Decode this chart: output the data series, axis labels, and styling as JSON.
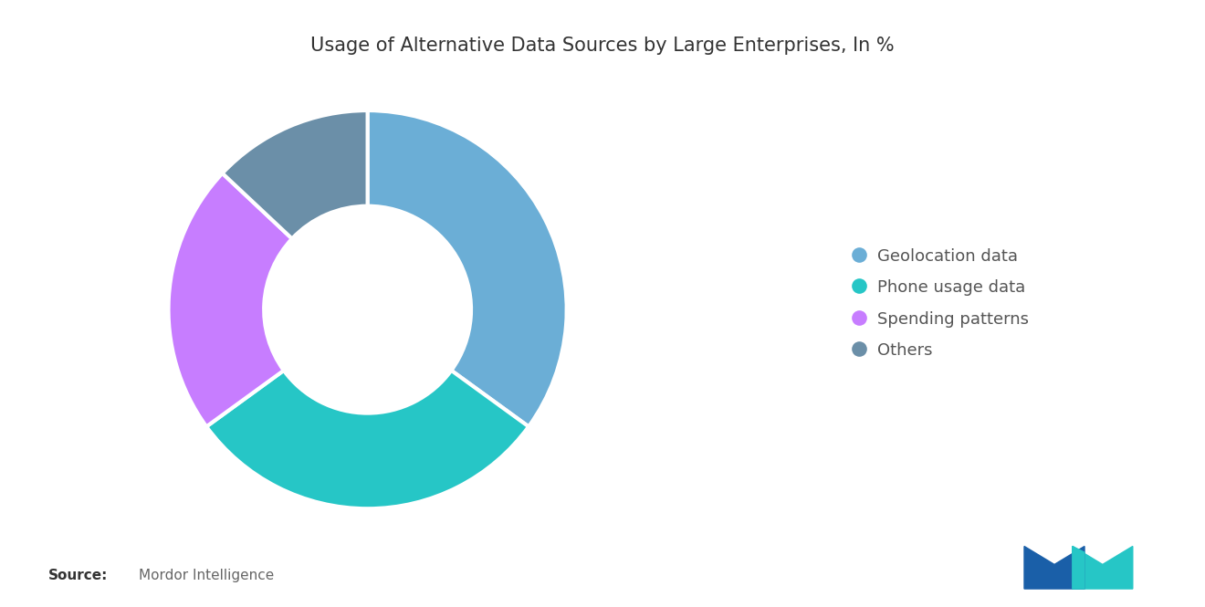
{
  "title": "Usage of Alternative Data Sources by Large Enterprises, In %",
  "labels": [
    "Geolocation data",
    "Phone usage data",
    "Spending patterns",
    "Others"
  ],
  "values": [
    35,
    30,
    22,
    13
  ],
  "colors": [
    "#6BAED6",
    "#26C6C6",
    "#C77DFF",
    "#6B8FA8"
  ],
  "background_color": "#ffffff",
  "title_fontsize": 15,
  "legend_fontsize": 13,
  "source_bold": "Source:",
  "source_normal": "Mordor Intelligence",
  "start_angle": 90,
  "donut_width": 0.48
}
